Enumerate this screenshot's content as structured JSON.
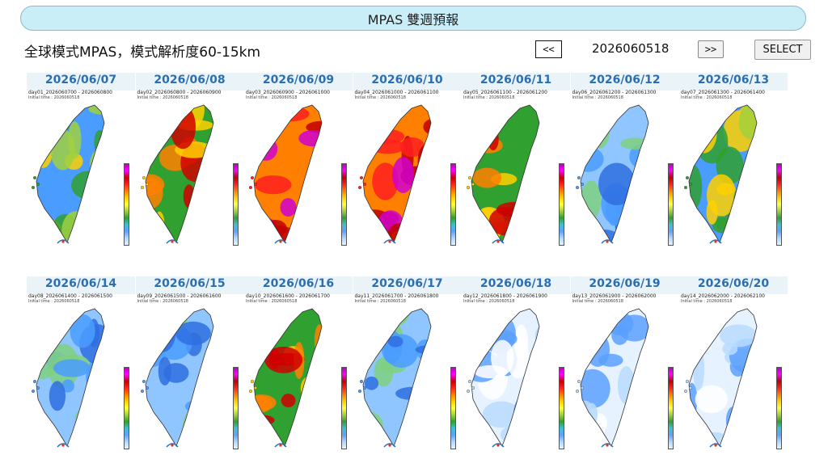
{
  "header": {
    "title": "MPAS 雙週預報"
  },
  "subtitle": "全球模式MPAS，模式解析度60-15km",
  "nav": {
    "prev_label": "<<",
    "next_label": ">>",
    "current_run": "2026060518",
    "select_label": "SELECT"
  },
  "panels": [
    {
      "date": "2026/06/07",
      "range": "day01_2026060700 - 2026060800",
      "init": "Initial time : 2026060518",
      "level": "moderate"
    },
    {
      "date": "2026/06/08",
      "range": "day02_2026060800 - 2026060900",
      "init": "Initial time : 2026060518",
      "level": "moderate-high"
    },
    {
      "date": "2026/06/09",
      "range": "day03_2026060900 - 2026061000",
      "init": "Initial time : 2026060518",
      "level": "very-high"
    },
    {
      "date": "2026/06/10",
      "range": "day04_2026061000 - 2026061100",
      "init": "Initial time : 2026060518",
      "level": "very-high"
    },
    {
      "date": "2026/06/11",
      "range": "day05_2026061100 - 2026061200",
      "init": "Initial time : 2026060518",
      "level": "moderate-high"
    },
    {
      "date": "2026/06/12",
      "range": "day06_2026061200 - 2026061300",
      "init": "Initial time : 2026060518",
      "level": "low"
    },
    {
      "date": "2026/06/13",
      "range": "day07_2026061300 - 2026061400",
      "init": "Initial time : 2026060518",
      "level": "moderate"
    },
    {
      "date": "2026/06/14",
      "range": "day08_2026061400 - 2026061500",
      "init": "Initial time : 2026060518",
      "level": "low"
    },
    {
      "date": "2026/06/15",
      "range": "day09_2026061500 - 2026061600",
      "init": "Initial time : 2026060518",
      "level": "low"
    },
    {
      "date": "2026/06/16",
      "range": "day10_2026061600 - 2026061700",
      "init": "Initial time : 2026060518",
      "level": "moderate-high"
    },
    {
      "date": "2026/06/17",
      "range": "day11_2026061700 - 2026061800",
      "init": "Initial time : 2026060518",
      "level": "low"
    },
    {
      "date": "2026/06/18",
      "range": "day12_2026061800 - 2026061900",
      "init": "Initial time : 2026060518",
      "level": "very-low"
    },
    {
      "date": "2026/06/19",
      "range": "day13_2026061900 - 2026062000",
      "init": "Initial time : 2026060518",
      "level": "very-low"
    },
    {
      "date": "2026/06/20",
      "range": "day14_2026062000 - 2026062100",
      "init": "Initial time : 2026060518",
      "level": "very-low"
    }
  ],
  "colors": {
    "title_bar_bg": "#c9eef8",
    "date_text": "#2a6fb5",
    "very-low": [
      "#e6f2ff",
      "#b8dcff",
      "#5aa0ff",
      "#ffffff"
    ],
    "low": [
      "#8fc6ff",
      "#4a9cff",
      "#2f6fe0",
      "#80d080"
    ],
    "moderate": [
      "#4a9cff",
      "#30a030",
      "#a0d040",
      "#ffd000"
    ],
    "moderate-high": [
      "#30a030",
      "#ffd000",
      "#ff8000",
      "#d00000"
    ],
    "very-high": [
      "#ff8000",
      "#ff2020",
      "#c00000",
      "#d000d0"
    ]
  }
}
